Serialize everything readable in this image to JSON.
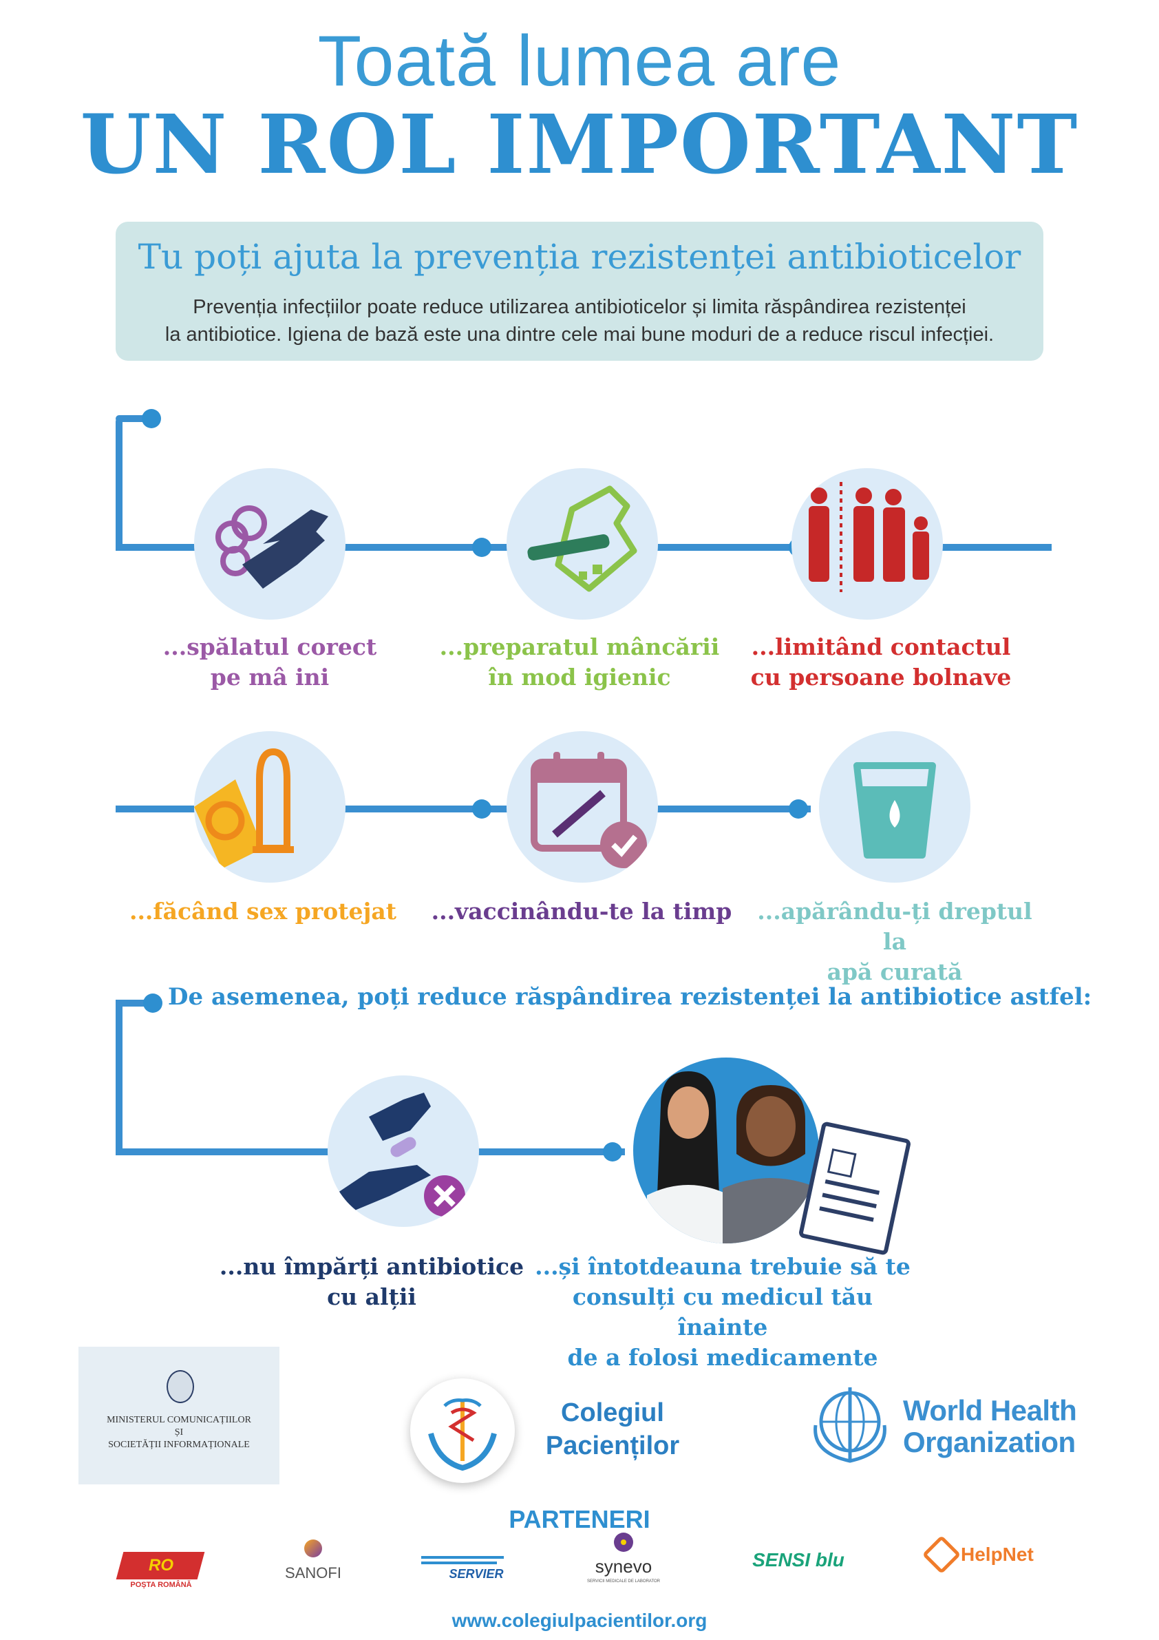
{
  "title": {
    "line1": "Toată lumea are",
    "line2": "UN ROL IMPORTANT"
  },
  "intro": {
    "subtitle": "Tu poți ajuta la prevenția rezistenței antibioticelor",
    "description_line1": "Prevenția infecțiilor poate reduce utilizarea antibioticelor și limita răspândirea rezistenței",
    "description_line2": "la antibiotice. Igiena de bază este una dintre cele mai bune moduri de a reduce riscul infecției."
  },
  "steps": [
    {
      "line1": "...spălatul corect",
      "line2": "pe mâ ini",
      "color": "#9b59a6",
      "icon": "hand-washing-icon"
    },
    {
      "line1": "...preparatul mâncării",
      "line2": "în mod igienic",
      "color": "#8bc34a",
      "icon": "cutting-board-icon"
    },
    {
      "line1": "...limitând contactul",
      "line2": "cu persoane bolnave",
      "color": "#d32f2f",
      "icon": "people-icon"
    },
    {
      "line1": "...făcând sex protejat",
      "line2": "",
      "color": "#f5a623",
      "icon": "condom-icon"
    },
    {
      "line1": "...vaccinându-te la timp",
      "line2": "",
      "color": "#6a3d8f",
      "icon": "calendar-syringe-icon"
    },
    {
      "line1": "...apărându-ți dreptul la",
      "line2": "apă curată",
      "color": "#7fc8c6",
      "icon": "water-glass-icon"
    }
  ],
  "section2": {
    "heading": "De asemenea, poți reduce răspândirea rezistenței la antibiotice astfel:",
    "items": [
      {
        "line1": "...nu împărți antibiotice",
        "line2": "cu alții",
        "line3": "",
        "color": "#1f3a6b"
      },
      {
        "line1": "...și întotdeauna trebuie să te",
        "line2": "consulți cu medicul tău înainte",
        "line3": "de a folosi medicamente",
        "color": "#2e8fd0"
      }
    ]
  },
  "logos": {
    "ministry_line1": "MINISTERUL COMUNICAȚIILOR",
    "ministry_line2": "ȘI",
    "ministry_line3": "SOCIETĂȚII INFORMAȚIONALE",
    "colegiu_line1": "Colegiul",
    "colegiu_line2": "Pacienților",
    "who_line1": "World Health",
    "who_line2": "Organization"
  },
  "partners": {
    "heading": "PARTENERI",
    "items": [
      "POȘTA ROMÂNĂ",
      "SANOFI",
      "SERVIER",
      "synevo",
      "SENSI blu",
      "HelpNet"
    ],
    "synevo_sub": "SERVICII MEDICALE DE LABORATOR"
  },
  "website": "www.colegiulpacientilor.org",
  "colors": {
    "accent_blue": "#2e8fd0",
    "circle_bg": "#dcebf8",
    "info_box": "#cfe6e7"
  }
}
